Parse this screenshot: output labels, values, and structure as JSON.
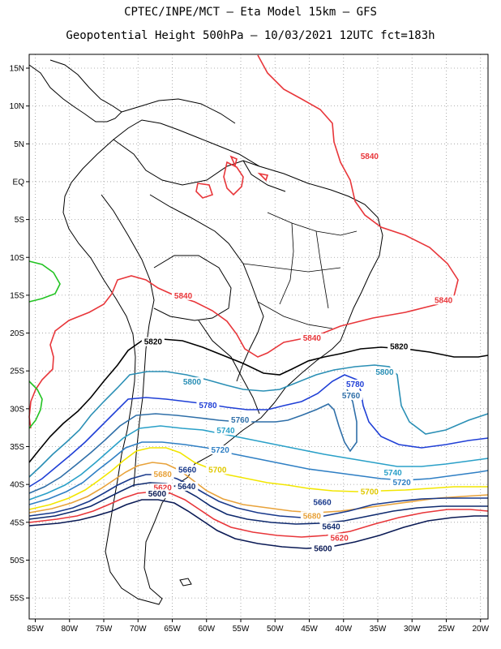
{
  "title": {
    "line1": "CPTEC/INPE/MCT –  Eta Model 15km – GFS",
    "line2": "Geopotential Height 500hPa – 10/03/2021 12UTC fct=183h"
  },
  "axes": {
    "lat_labels": [
      "15N",
      "10N",
      "5N",
      "EQ",
      "5S",
      "10S",
      "15S",
      "20S",
      "25S",
      "30S",
      "35S",
      "40S",
      "45S",
      "50S",
      "55S"
    ],
    "lat_values": [
      15,
      10,
      5,
      0,
      -5,
      -10,
      -15,
      -20,
      -25,
      -30,
      -35,
      -40,
      -45,
      -50,
      -55
    ],
    "lon_labels": [
      "85W",
      "80W",
      "75W",
      "70W",
      "65W",
      "60W",
      "55W",
      "50W",
      "45W",
      "40W",
      "35W",
      "30W",
      "25W",
      "20W"
    ],
    "lon_values": [
      -85,
      -80,
      -75,
      -70,
      -65,
      -60,
      -55,
      -50,
      -45,
      -40,
      -35,
      -30,
      -25,
      -20
    ],
    "lat_range": [
      -58,
      17
    ],
    "lon_range": [
      -86,
      -19
    ],
    "grid": "dotted"
  },
  "contours": [
    {
      "value": "5840",
      "color": "#e8363a"
    },
    {
      "value": "5820",
      "color": "#000000"
    },
    {
      "value": "5800",
      "color": "#2a8fb5"
    },
    {
      "value": "5780",
      "color": "#1f3fd6"
    },
    {
      "value": "5760",
      "color": "#2f6fa8"
    },
    {
      "value": "5740",
      "color": "#2aa0c8"
    },
    {
      "value": "5720",
      "color": "#2f7fc4"
    },
    {
      "value": "5700",
      "color": "#f2e600"
    },
    {
      "value": "5680",
      "color": "#e8a23a"
    },
    {
      "value": "5660",
      "color": "#1a3a8c"
    },
    {
      "value": "5640",
      "color": "#0f2a6e"
    },
    {
      "value": "5620",
      "color": "#e8363a"
    },
    {
      "value": "5600",
      "color": "#0a1a55"
    }
  ],
  "labels": [
    {
      "text": "5840",
      "lon": -36.2,
      "lat": 3.2,
      "color": "#e8363a"
    },
    {
      "text": "5840",
      "lon": -63.4,
      "lat": -15.2,
      "color": "#e8363a"
    },
    {
      "text": "5840",
      "lon": -25.4,
      "lat": -15.8,
      "color": "#e8363a"
    },
    {
      "text": "5840",
      "lon": -44.6,
      "lat": -20.8,
      "color": "#e8363a"
    },
    {
      "text": "5820",
      "lon": -67.8,
      "lat": -21.3,
      "color": "#000000"
    },
    {
      "text": "5820",
      "lon": -31.9,
      "lat": -21.9,
      "color": "#000000"
    },
    {
      "text": "5800",
      "lon": -62.1,
      "lat": -26.6,
      "color": "#2a8fb5"
    },
    {
      "text": "5800",
      "lon": -34.0,
      "lat": -25.3,
      "color": "#2a8fb5"
    },
    {
      "text": "5780",
      "lon": -38.3,
      "lat": -26.9,
      "color": "#1f3fd6"
    },
    {
      "text": "5780",
      "lon": -59.8,
      "lat": -29.7,
      "color": "#1f3fd6"
    },
    {
      "text": "5760",
      "lon": -38.9,
      "lat": -28.4,
      "color": "#2f6fa8"
    },
    {
      "text": "5760",
      "lon": -55.1,
      "lat": -31.6,
      "color": "#2f6fa8"
    },
    {
      "text": "5740",
      "lon": -57.2,
      "lat": -33.0,
      "color": "#2aa0c8"
    },
    {
      "text": "5740",
      "lon": -32.8,
      "lat": -38.6,
      "color": "#2aa0c8"
    },
    {
      "text": "5720",
      "lon": -58.0,
      "lat": -35.6,
      "color": "#2f7fc4"
    },
    {
      "text": "5720",
      "lon": -31.5,
      "lat": -39.9,
      "color": "#2f7fc4"
    },
    {
      "text": "5700",
      "lon": -58.4,
      "lat": -38.2,
      "color": "#e0c800"
    },
    {
      "text": "5700",
      "lon": -36.2,
      "lat": -41.1,
      "color": "#e0c800"
    },
    {
      "text": "5680",
      "lon": -66.4,
      "lat": -38.8,
      "color": "#e8a23a"
    },
    {
      "text": "5680",
      "lon": -44.6,
      "lat": -44.3,
      "color": "#e8a23a"
    },
    {
      "text": "5660",
      "lon": -62.8,
      "lat": -38.2,
      "color": "#1a3a8c"
    },
    {
      "text": "5660",
      "lon": -43.1,
      "lat": -42.5,
      "color": "#1a3a8c"
    },
    {
      "text": "5640",
      "lon": -62.9,
      "lat": -40.4,
      "color": "#0f2a6e"
    },
    {
      "text": "5640",
      "lon": -41.8,
      "lat": -45.7,
      "color": "#0f2a6e"
    },
    {
      "text": "5620",
      "lon": -66.4,
      "lat": -40.6,
      "color": "#e8363a"
    },
    {
      "text": "5620",
      "lon": -40.6,
      "lat": -47.2,
      "color": "#e8363a"
    },
    {
      "text": "5600",
      "lon": -67.2,
      "lat": -41.4,
      "color": "#0a1a55"
    },
    {
      "text": "5600",
      "lon": -43.0,
      "lat": -48.6,
      "color": "#0a1a55"
    }
  ]
}
